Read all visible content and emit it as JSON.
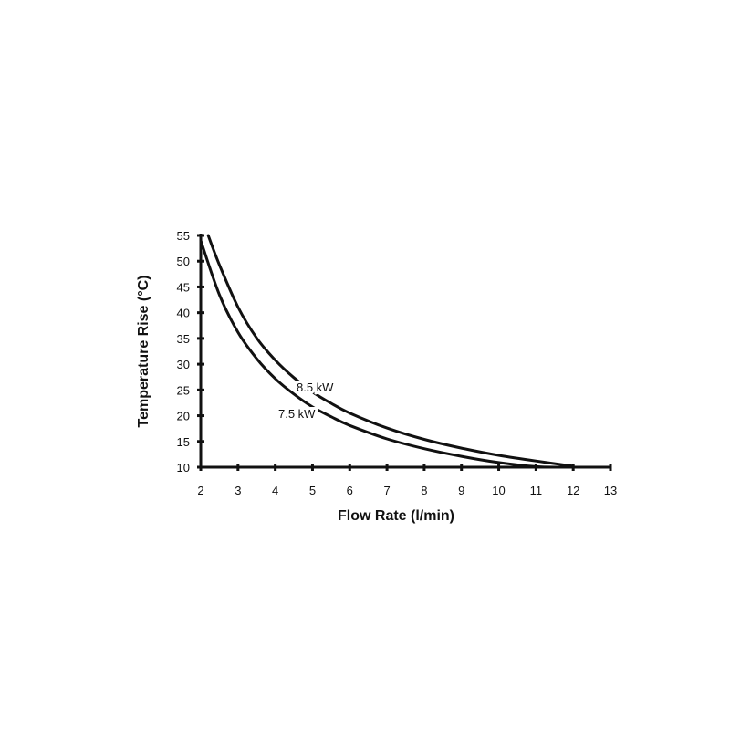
{
  "chart_data": {
    "type": "line",
    "title": "",
    "xlabel": "Flow Rate (l/min)",
    "ylabel": "Temperature Rise (°C)",
    "xlim": [
      2,
      13
    ],
    "ylim": [
      10,
      55
    ],
    "x_ticks": [
      "2",
      "3",
      "4",
      "5",
      "6",
      "7",
      "8",
      "9",
      "10",
      "11",
      "12",
      "13"
    ],
    "y_ticks": [
      "10",
      "15",
      "20",
      "25",
      "30",
      "35",
      "40",
      "45",
      "50",
      "55"
    ],
    "grid": false,
    "series": [
      {
        "name": "8.5 kW",
        "x": [
          2.2,
          2.5,
          3,
          3.5,
          4,
          4.5,
          5,
          5.5,
          6,
          7,
          8,
          9,
          10,
          11,
          12
        ],
        "y": [
          55,
          49.3,
          41.1,
          35.1,
          30.8,
          27.4,
          24.6,
          22.4,
          20.5,
          17.6,
          15.4,
          13.7,
          12.3,
          11.2,
          10.2
        ]
      },
      {
        "name": "7.5 kW",
        "x": [
          2,
          2.5,
          3,
          3.5,
          4,
          4.5,
          5,
          5.5,
          6,
          7,
          8,
          9,
          10,
          11,
          11.7
        ],
        "y": [
          54,
          43.5,
          36.2,
          31.1,
          27.2,
          24.2,
          21.7,
          19.8,
          18.1,
          15.5,
          13.6,
          12.1,
          10.9,
          10.1,
          10
        ]
      }
    ],
    "colors": {
      "axis": "#111111",
      "line": "#111111",
      "background": "#ffffff"
    }
  }
}
